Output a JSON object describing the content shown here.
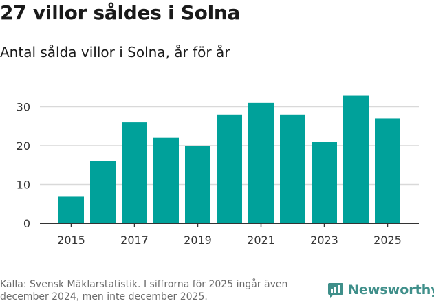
{
  "header": {
    "title": "27 villor såldes i Solna",
    "subtitle": "Antal sålda villor i Solna, år för år"
  },
  "footer": {
    "source": "Källa: Svensk Mäklarstatistik. I siffrorna för 2025 ingår även december 2024, men inte december 2025.",
    "brand": "Newsworthy"
  },
  "colors": {
    "bar": "#00a19a",
    "grid": "#d9d9d9",
    "axis": "#333333",
    "brand": "#3f8f8a"
  },
  "chart_data": {
    "type": "bar",
    "categories": [
      "2015",
      "2016",
      "2017",
      "2018",
      "2019",
      "2020",
      "2021",
      "2022",
      "2023",
      "2024",
      "2025"
    ],
    "values": [
      7,
      16,
      26,
      22,
      20,
      28,
      31,
      28,
      21,
      33,
      27
    ],
    "title": "27 villor såldes i Solna",
    "subtitle": "Antal sålda villor i Solna, år för år",
    "xlabel": "",
    "ylabel": "",
    "ylim": [
      0,
      34
    ],
    "yticks": [
      "0",
      "10",
      "20",
      "30"
    ],
    "xticks": [
      "2015",
      "2017",
      "2019",
      "2021",
      "2023",
      "2025"
    ],
    "grid": true,
    "legend": "none"
  }
}
